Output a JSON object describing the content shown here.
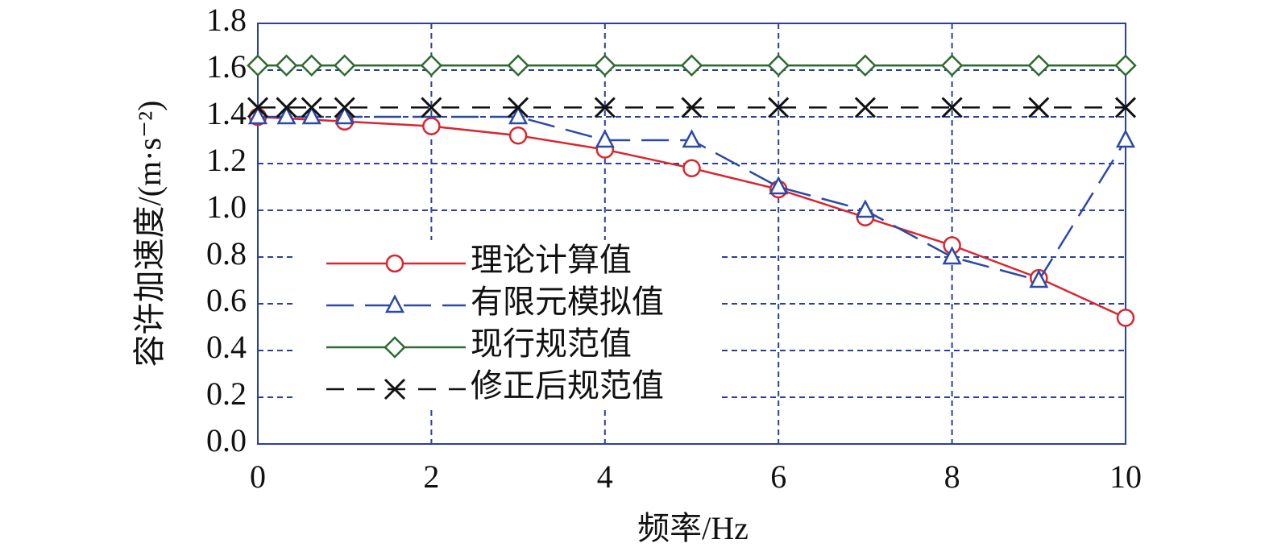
{
  "chart_data": {
    "type": "line",
    "x_label": "频率/Hz",
    "y_label": "容许加速度/(m·s⁻²)",
    "xlim": [
      0,
      10
    ],
    "xticks": [
      0,
      2,
      4,
      6,
      8,
      10
    ],
    "ylim": [
      0,
      1.8
    ],
    "yticks": [
      {
        "value": 0,
        "label": "0.0"
      },
      {
        "value": 0.2,
        "label": "0.2"
      },
      {
        "value": 0.4,
        "label": "0.4"
      },
      {
        "value": 0.6,
        "label": "0.6"
      },
      {
        "value": 0.8,
        "label": "0.8"
      },
      {
        "value": 1,
        "label": "1.0"
      },
      {
        "value": 1.2,
        "label": "1.2"
      },
      {
        "value": 1.4,
        "label": "1.4"
      },
      {
        "value": 1.6,
        "label": "1.6"
      },
      {
        "value": 1.8,
        "label": "1.8"
      }
    ],
    "grid": true,
    "series": [
      {
        "name": "理论计算值",
        "color": "#d7272f",
        "marker": "circle",
        "linestyle": "solid",
        "x": [
          0,
          1,
          2,
          3,
          4,
          5,
          6,
          7,
          8,
          9,
          10
        ],
        "values": [
          1.4,
          1.38,
          1.36,
          1.32,
          1.26,
          1.18,
          1.09,
          0.97,
          0.85,
          0.71,
          0.54
        ]
      },
      {
        "name": "有限元模拟值",
        "color": "#2b4aa8",
        "marker": "triangle",
        "linestyle": "dashed",
        "x": [
          0,
          0.33,
          0.62,
          1,
          3,
          4,
          5,
          6,
          7,
          8,
          9,
          10
        ],
        "values": [
          1.4,
          1.4,
          1.4,
          1.4,
          1.4,
          1.3,
          1.3,
          1.1,
          1.0,
          0.8,
          0.7,
          1.3
        ]
      },
      {
        "name": "现行规范值",
        "color": "#2e6b30",
        "marker": "diamond",
        "linestyle": "solid",
        "x": [
          0,
          0.33,
          0.62,
          1,
          2,
          3,
          4,
          5,
          6,
          7,
          8,
          9,
          10
        ],
        "values": [
          1.62,
          1.62,
          1.62,
          1.62,
          1.62,
          1.62,
          1.62,
          1.62,
          1.62,
          1.62,
          1.62,
          1.62,
          1.62
        ]
      },
      {
        "name": "修正后规范值",
        "color": "#111111",
        "marker": "x",
        "linestyle": "dashed",
        "x": [
          0,
          0.33,
          0.62,
          1,
          2,
          3,
          4,
          5,
          6,
          7,
          8,
          9,
          10
        ],
        "values": [
          1.44,
          1.44,
          1.44,
          1.44,
          1.44,
          1.44,
          1.44,
          1.44,
          1.44,
          1.44,
          1.44,
          1.44,
          1.44
        ]
      }
    ]
  }
}
